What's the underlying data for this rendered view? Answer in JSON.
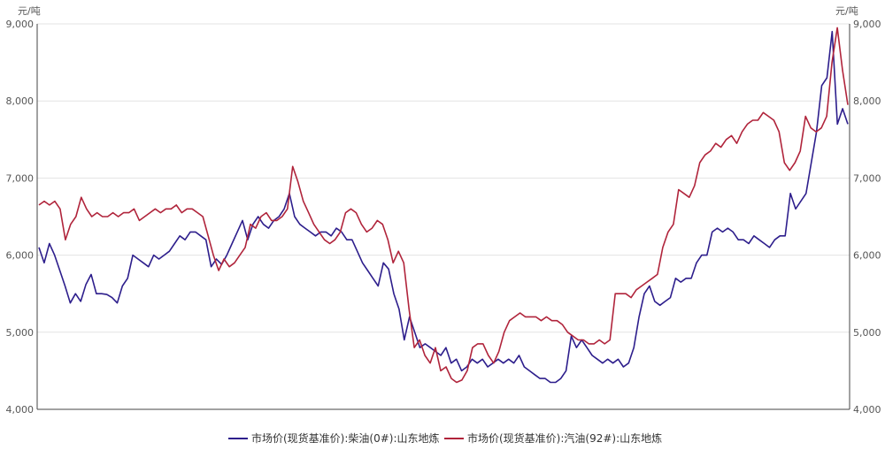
{
  "chart_data": {
    "type": "line",
    "y_unit_left": "元/吨",
    "y_unit_right": "元/吨",
    "ylim": [
      4000,
      9000
    ],
    "y_ticks": [
      4000,
      5000,
      6000,
      7000,
      8000,
      9000
    ],
    "y_tick_labels": [
      "4,000",
      "5,000",
      "6,000",
      "7,000",
      "8,000",
      "9,000"
    ],
    "grid": true,
    "legend_position": "bottom-center",
    "x_sampling": "equally spaced observations across the period, left to right",
    "series": [
      {
        "name": "市场价(现货基准价):柴油(0#):山东地炼",
        "color": "#2d1e8c",
        "values": [
          6100,
          5900,
          6150,
          6000,
          5800,
          5600,
          5380,
          5500,
          5400,
          5620,
          5750,
          5500,
          5500,
          5490,
          5450,
          5380,
          5600,
          5700,
          6000,
          5950,
          5900,
          5850,
          6000,
          5950,
          6000,
          6050,
          6150,
          6250,
          6200,
          6300,
          6300,
          6250,
          6200,
          5850,
          5950,
          5880,
          6000,
          6150,
          6300,
          6450,
          6200,
          6400,
          6500,
          6400,
          6350,
          6450,
          6500,
          6600,
          6800,
          6500,
          6400,
          6350,
          6300,
          6250,
          6300,
          6300,
          6250,
          6350,
          6300,
          6200,
          6200,
          6050,
          5900,
          5800,
          5700,
          5600,
          5900,
          5820,
          5500,
          5300,
          4900,
          5200,
          5000,
          4800,
          4850,
          4800,
          4750,
          4700,
          4800,
          4600,
          4650,
          4500,
          4550,
          4650,
          4600,
          4650,
          4550,
          4600,
          4650,
          4600,
          4650,
          4600,
          4700,
          4550,
          4500,
          4450,
          4400,
          4400,
          4350,
          4350,
          4400,
          4500,
          4950,
          4800,
          4900,
          4800,
          4700,
          4650,
          4600,
          4650,
          4600,
          4650,
          4550,
          4600,
          4800,
          5200,
          5500,
          5600,
          5400,
          5350,
          5400,
          5450,
          5700,
          5650,
          5700,
          5700,
          5900,
          6000,
          6000,
          6300,
          6350,
          6300,
          6350,
          6300,
          6200,
          6200,
          6150,
          6250,
          6200,
          6150,
          6100,
          6200,
          6250,
          6250,
          6800,
          6600,
          6700,
          6800,
          7200,
          7600,
          8200,
          8300,
          8900,
          7700,
          7900,
          7700
        ]
      },
      {
        "name": "市场价(现货基准价):汽油(92#):山东地炼",
        "color": "#b0243b",
        "values": [
          6650,
          6700,
          6650,
          6700,
          6600,
          6200,
          6400,
          6500,
          6750,
          6600,
          6500,
          6550,
          6500,
          6500,
          6550,
          6500,
          6550,
          6550,
          6600,
          6450,
          6500,
          6550,
          6600,
          6550,
          6600,
          6600,
          6650,
          6550,
          6600,
          6600,
          6550,
          6500,
          6250,
          6000,
          5800,
          5950,
          5850,
          5900,
          6000,
          6100,
          6400,
          6350,
          6500,
          6550,
          6450,
          6450,
          6500,
          6600,
          7150,
          6950,
          6700,
          6550,
          6400,
          6300,
          6200,
          6150,
          6200,
          6300,
          6550,
          6600,
          6550,
          6400,
          6300,
          6350,
          6450,
          6400,
          6200,
          5900,
          6050,
          5900,
          5300,
          4800,
          4900,
          4700,
          4600,
          4800,
          4500,
          4550,
          4400,
          4350,
          4380,
          4500,
          4800,
          4850,
          4850,
          4700,
          4600,
          4750,
          5000,
          5150,
          5200,
          5250,
          5200,
          5200,
          5200,
          5150,
          5200,
          5150,
          5150,
          5100,
          5000,
          4950,
          4900,
          4900,
          4850,
          4850,
          4900,
          4850,
          4900,
          5500,
          5500,
          5500,
          5450,
          5550,
          5600,
          5650,
          5700,
          5750,
          6100,
          6300,
          6400,
          6850,
          6800,
          6750,
          6900,
          7200,
          7300,
          7350,
          7450,
          7400,
          7500,
          7550,
          7450,
          7600,
          7700,
          7750,
          7750,
          7850,
          7800,
          7750,
          7600,
          7200,
          7100,
          7200,
          7350,
          7800,
          7650,
          7600,
          7650,
          7800,
          8500,
          8950,
          8400,
          7950
        ]
      }
    ]
  }
}
